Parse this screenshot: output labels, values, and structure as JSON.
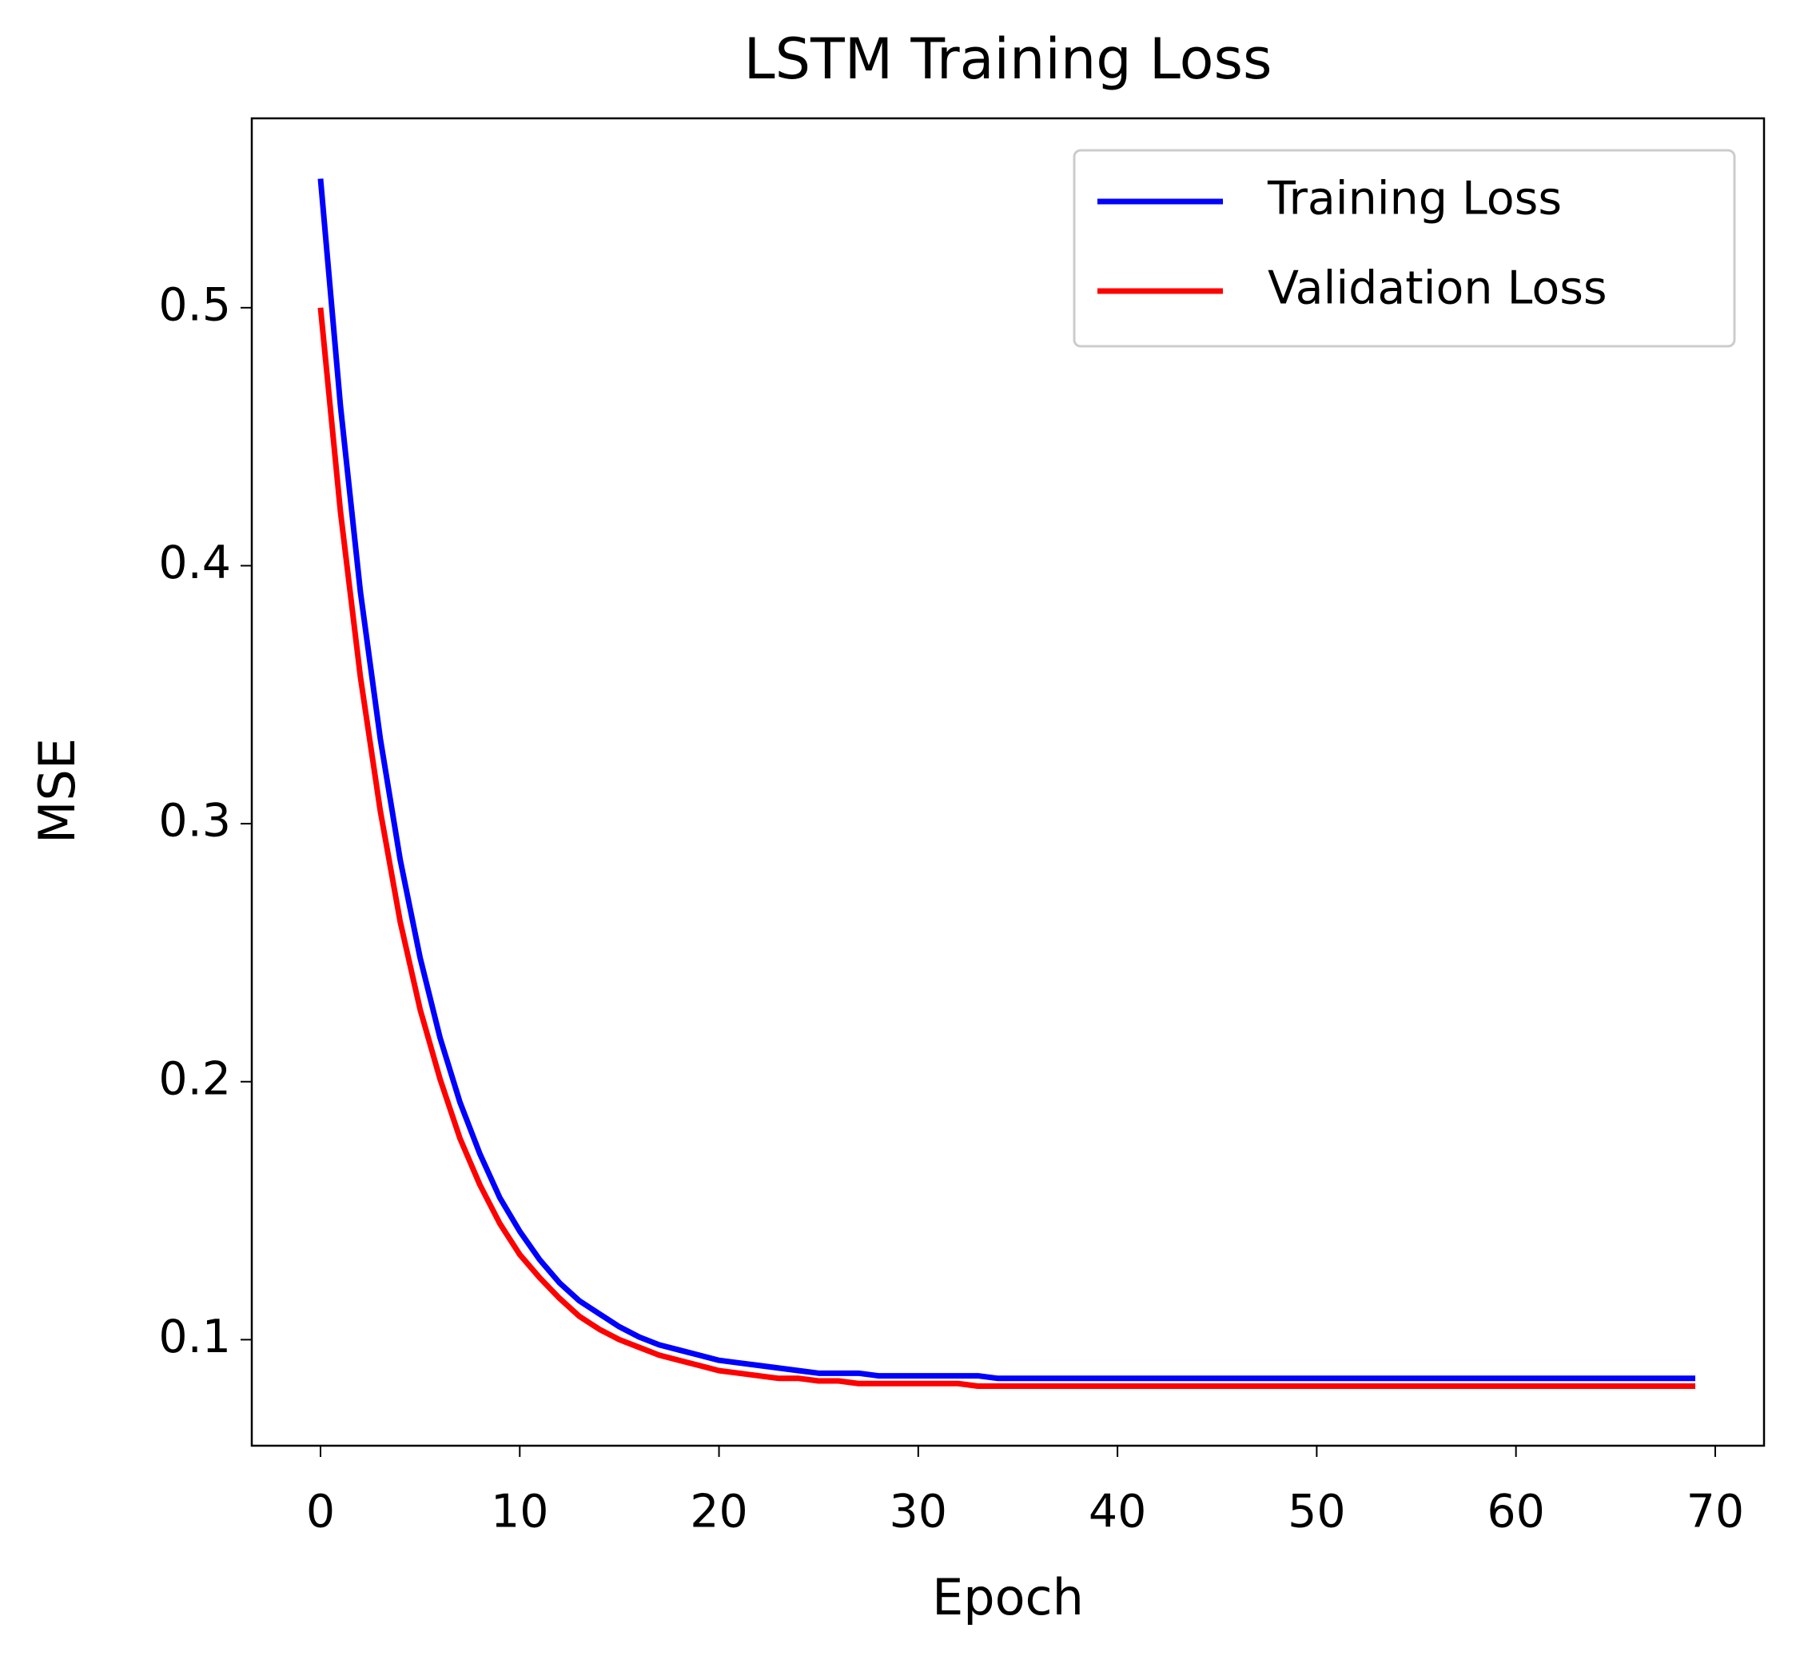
{
  "chart_data": {
    "type": "line",
    "title": "LSTM Training Loss",
    "x_label": "Epoch",
    "y_label": "MSE",
    "x": [
      0,
      1,
      2,
      3,
      4,
      5,
      6,
      7,
      8,
      9,
      10,
      11,
      12,
      13,
      14,
      15,
      16,
      17,
      18,
      19,
      20,
      21,
      22,
      23,
      24,
      25,
      26,
      27,
      28,
      29,
      30,
      31,
      32,
      33,
      34,
      35,
      36,
      37,
      38,
      39,
      40,
      41,
      42,
      43,
      44,
      45,
      46,
      47,
      48,
      49,
      50,
      51,
      52,
      53,
      54,
      55,
      56,
      57,
      58,
      59,
      60,
      61,
      62,
      63,
      64,
      65,
      66,
      67,
      68,
      69
    ],
    "series": [
      {
        "name": "Training Loss",
        "color": "#0000ff",
        "values": [
          0.55,
          0.462,
          0.39,
          0.333,
          0.286,
          0.248,
          0.217,
          0.192,
          0.172,
          0.155,
          0.142,
          0.131,
          0.122,
          0.115,
          0.11,
          0.105,
          0.101,
          0.098,
          0.096,
          0.094,
          0.092,
          0.091,
          0.09,
          0.089,
          0.088,
          0.087,
          0.087,
          0.087,
          0.086,
          0.086,
          0.086,
          0.086,
          0.086,
          0.086,
          0.085,
          0.085,
          0.085,
          0.085,
          0.085,
          0.085,
          0.085,
          0.085,
          0.085,
          0.085,
          0.085,
          0.085,
          0.085,
          0.085,
          0.085,
          0.085,
          0.085,
          0.085,
          0.085,
          0.085,
          0.085,
          0.085,
          0.085,
          0.085,
          0.085,
          0.085,
          0.085,
          0.085,
          0.085,
          0.085,
          0.085,
          0.085,
          0.085,
          0.085,
          0.085,
          0.085
        ]
      },
      {
        "name": "Validation Loss",
        "color": "#ff0000",
        "values": [
          0.5,
          0.421,
          0.357,
          0.305,
          0.262,
          0.228,
          0.201,
          0.178,
          0.16,
          0.145,
          0.133,
          0.124,
          0.116,
          0.109,
          0.104,
          0.1,
          0.097,
          0.094,
          0.092,
          0.09,
          0.088,
          0.087,
          0.086,
          0.085,
          0.085,
          0.084,
          0.084,
          0.083,
          0.083,
          0.083,
          0.083,
          0.083,
          0.083,
          0.082,
          0.082,
          0.082,
          0.082,
          0.082,
          0.082,
          0.082,
          0.082,
          0.082,
          0.082,
          0.082,
          0.082,
          0.082,
          0.082,
          0.082,
          0.082,
          0.082,
          0.082,
          0.082,
          0.082,
          0.082,
          0.082,
          0.082,
          0.082,
          0.082,
          0.082,
          0.082,
          0.082,
          0.082,
          0.082,
          0.082,
          0.082,
          0.082,
          0.082,
          0.082,
          0.082,
          0.082
        ]
      }
    ],
    "xlim": [
      -3.45,
      72.45
    ],
    "xticks": [
      0,
      10,
      20,
      30,
      40,
      50,
      60,
      70
    ],
    "ylim": [
      0.0589,
      0.5734
    ],
    "yticks": [
      0.1,
      0.2,
      0.3,
      0.4,
      0.5
    ],
    "legend": "upper right",
    "grid": false
  }
}
